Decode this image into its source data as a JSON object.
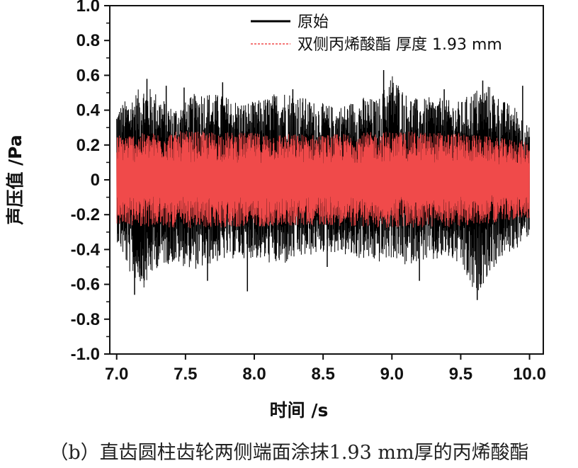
{
  "caption": "（b）直齿圆柱齿轮两侧端面涂抹1.93 mm厚的丙烯酸酯",
  "chart_data": {
    "type": "line",
    "xlabel": "时间 /s",
    "ylabel": "声压值 /Pa",
    "xlim": [
      6.95,
      10.1
    ],
    "ylim": [
      -1.0,
      1.0
    ],
    "xticks": [
      "7.0",
      "7.5",
      "8.0",
      "8.5",
      "9.0",
      "9.5",
      "10.0"
    ],
    "xtick_values": [
      7.0,
      7.5,
      8.0,
      8.5,
      9.0,
      9.5,
      10.0
    ],
    "yticks": [
      "-1.0",
      "-0.8",
      "-0.6",
      "-0.4",
      "-0.2",
      "0",
      "0.2",
      "0.4",
      "0.6",
      "0.8",
      "1.0"
    ],
    "ytick_values": [
      -1.0,
      -0.8,
      -0.6,
      -0.4,
      -0.2,
      0,
      0.2,
      0.4,
      0.6,
      0.8,
      1.0
    ],
    "grid": false,
    "legend_position": "top-right",
    "series": [
      {
        "name": "原始",
        "color": "#000000",
        "x_range": [
          7.0,
          10.0
        ],
        "envelope": {
          "x": [
            7.0,
            7.1,
            7.2,
            7.3,
            7.4,
            7.5,
            7.6,
            7.7,
            7.8,
            7.9,
            8.0,
            8.1,
            8.2,
            8.3,
            8.4,
            8.5,
            8.6,
            8.7,
            8.8,
            8.9,
            9.0,
            9.1,
            9.2,
            9.3,
            9.4,
            9.5,
            9.6,
            9.7,
            9.8,
            9.9,
            10.0
          ],
          "upper": [
            0.42,
            0.48,
            0.55,
            0.5,
            0.42,
            0.45,
            0.52,
            0.5,
            0.48,
            0.45,
            0.45,
            0.48,
            0.52,
            0.5,
            0.46,
            0.44,
            0.42,
            0.45,
            0.48,
            0.46,
            0.62,
            0.5,
            0.46,
            0.48,
            0.46,
            0.45,
            0.52,
            0.55,
            0.46,
            0.42,
            0.3
          ],
          "lower": [
            -0.35,
            -0.55,
            -0.62,
            -0.5,
            -0.48,
            -0.5,
            -0.52,
            -0.48,
            -0.46,
            -0.45,
            -0.45,
            -0.48,
            -0.5,
            -0.46,
            -0.44,
            -0.42,
            -0.42,
            -0.45,
            -0.46,
            -0.48,
            -0.45,
            -0.5,
            -0.46,
            -0.48,
            -0.45,
            -0.5,
            -0.68,
            -0.55,
            -0.45,
            -0.4,
            -0.32
          ]
        },
        "spikes": [
          {
            "x": 7.13,
            "y": -0.66
          },
          {
            "x": 7.22,
            "y": 0.58
          },
          {
            "x": 7.36,
            "y": 0.54
          },
          {
            "x": 7.49,
            "y": 0.53
          },
          {
            "x": 7.66,
            "y": -0.58
          },
          {
            "x": 7.77,
            "y": 0.56
          },
          {
            "x": 7.95,
            "y": -0.64
          },
          {
            "x": 8.28,
            "y": 0.52
          },
          {
            "x": 8.53,
            "y": -0.5
          },
          {
            "x": 8.94,
            "y": 0.63
          },
          {
            "x": 9.2,
            "y": -0.58
          },
          {
            "x": 9.38,
            "y": 0.52
          },
          {
            "x": 9.62,
            "y": -0.69
          },
          {
            "x": 9.66,
            "y": 0.57
          },
          {
            "x": 9.95,
            "y": 0.54
          }
        ]
      },
      {
        "name": "双侧丙烯酸酯  厚度 1.93 mm",
        "color": "#f04a4a",
        "x_range": [
          7.0,
          10.0
        ],
        "envelope": {
          "x": [
            7.0,
            7.5,
            8.0,
            8.5,
            9.0,
            9.5,
            10.0
          ],
          "upper": [
            0.26,
            0.28,
            0.27,
            0.26,
            0.28,
            0.27,
            0.22
          ],
          "lower": [
            -0.26,
            -0.28,
            -0.27,
            -0.26,
            -0.28,
            -0.27,
            -0.22
          ]
        }
      }
    ]
  }
}
